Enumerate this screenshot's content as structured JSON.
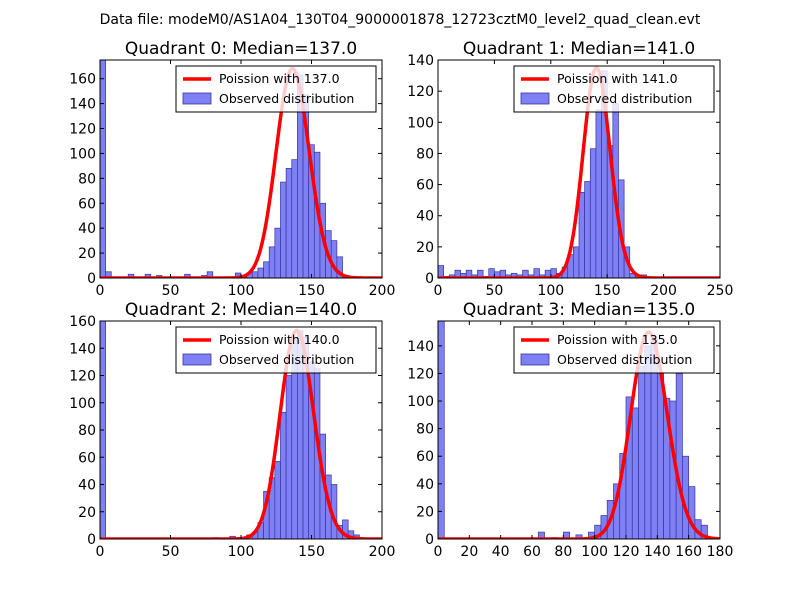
{
  "figure_title": "Data file: modeM0/AS1A04_130T04_9000001878_12723cztM0_level2_quad_clean.evt",
  "colors": {
    "bar_fill": "#8080f5",
    "bar_edge": "#3535a0",
    "line": "#ff0000",
    "axes": "#000000"
  },
  "chart_data": [
    {
      "type": "bar",
      "title": "Quadrant 0: Median=137.0",
      "median": 137.0,
      "xlim": [
        0,
        200
      ],
      "ylim": [
        0,
        175
      ],
      "xticks": [
        0,
        50,
        100,
        150,
        200
      ],
      "yticks": [
        0,
        20,
        40,
        60,
        80,
        100,
        120,
        140,
        160
      ],
      "bin_width": 4,
      "bins": [
        [
          0,
          175
        ],
        [
          4,
          5
        ],
        [
          20,
          3
        ],
        [
          32,
          3
        ],
        [
          40,
          2
        ],
        [
          60,
          3
        ],
        [
          72,
          2
        ],
        [
          76,
          5
        ],
        [
          88,
          1
        ],
        [
          96,
          4
        ],
        [
          100,
          2
        ],
        [
          104,
          4
        ],
        [
          108,
          5
        ],
        [
          112,
          8
        ],
        [
          116,
          13
        ],
        [
          120,
          25
        ],
        [
          124,
          40
        ],
        [
          128,
          77
        ],
        [
          132,
          88
        ],
        [
          136,
          95
        ],
        [
          140,
          163
        ],
        [
          144,
          147
        ],
        [
          148,
          107
        ],
        [
          152,
          101
        ],
        [
          156,
          60
        ],
        [
          160,
          38
        ],
        [
          164,
          30
        ],
        [
          168,
          17
        ],
        [
          172,
          2
        ]
      ],
      "legend": [
        "Poission with 137.0",
        "Observed distribution"
      ],
      "legend_position": "upper-right",
      "fit": {
        "mean": 137.0,
        "peak": 168,
        "label": "Poission with 137.0"
      }
    },
    {
      "type": "bar",
      "title": "Quadrant 1: Median=141.0",
      "median": 141.0,
      "xlim": [
        0,
        250
      ],
      "ylim": [
        0,
        140
      ],
      "xticks": [
        0,
        50,
        100,
        150,
        200,
        250
      ],
      "yticks": [
        0,
        20,
        40,
        60,
        80,
        100,
        120,
        140
      ],
      "bin_width": 5,
      "bins": [
        [
          0,
          8
        ],
        [
          5,
          1
        ],
        [
          10,
          2
        ],
        [
          15,
          5
        ],
        [
          20,
          3
        ],
        [
          25,
          5
        ],
        [
          30,
          2
        ],
        [
          35,
          5
        ],
        [
          40,
          1
        ],
        [
          45,
          6
        ],
        [
          50,
          4
        ],
        [
          55,
          5
        ],
        [
          60,
          2
        ],
        [
          65,
          3
        ],
        [
          70,
          2
        ],
        [
          75,
          5
        ],
        [
          80,
          2
        ],
        [
          85,
          6
        ],
        [
          90,
          2
        ],
        [
          95,
          5
        ],
        [
          100,
          6
        ],
        [
          105,
          3
        ],
        [
          110,
          7
        ],
        [
          115,
          15
        ],
        [
          120,
          20
        ],
        [
          125,
          55
        ],
        [
          130,
          62
        ],
        [
          135,
          83
        ],
        [
          140,
          108
        ],
        [
          145,
          133
        ],
        [
          150,
          85
        ],
        [
          155,
          112
        ],
        [
          160,
          63
        ],
        [
          165,
          20
        ],
        [
          170,
          3
        ],
        [
          175,
          2
        ],
        [
          180,
          2
        ]
      ],
      "legend": [
        "Poission with 141.0",
        "Observed distribution"
      ],
      "legend_position": "upper-right",
      "fit": {
        "mean": 141.0,
        "peak": 135,
        "label": "Poission with 141.0"
      }
    },
    {
      "type": "bar",
      "title": "Quadrant 2: Median=140.0",
      "median": 140.0,
      "xlim": [
        0,
        200
      ],
      "ylim": [
        0,
        160
      ],
      "xticks": [
        0,
        50,
        100,
        150,
        200
      ],
      "yticks": [
        0,
        20,
        40,
        60,
        80,
        100,
        120,
        140,
        160
      ],
      "bin_width": 4,
      "bins": [
        [
          0,
          160
        ],
        [
          80,
          1
        ],
        [
          92,
          2
        ],
        [
          104,
          3
        ],
        [
          108,
          5
        ],
        [
          112,
          12
        ],
        [
          116,
          35
        ],
        [
          120,
          45
        ],
        [
          124,
          57
        ],
        [
          128,
          93
        ],
        [
          132,
          120
        ],
        [
          136,
          148
        ],
        [
          140,
          153
        ],
        [
          144,
          148
        ],
        [
          148,
          130
        ],
        [
          152,
          125
        ],
        [
          156,
          77
        ],
        [
          160,
          47
        ],
        [
          164,
          40
        ],
        [
          168,
          10
        ],
        [
          172,
          14
        ],
        [
          176,
          6
        ],
        [
          180,
          3
        ]
      ],
      "legend": [
        "Poission with 140.0",
        "Observed distribution"
      ],
      "legend_position": "upper-right",
      "fit": {
        "mean": 140.0,
        "peak": 153,
        "label": "Poission with 140.0"
      }
    },
    {
      "type": "bar",
      "title": "Quadrant 3: Median=135.0",
      "median": 135.0,
      "xlim": [
        0,
        180
      ],
      "ylim": [
        0,
        158
      ],
      "xticks": [
        0,
        20,
        40,
        60,
        80,
        100,
        120,
        140,
        160,
        180
      ],
      "xtick_labels": [
        "0",
        "20",
        "40",
        "60",
        "80",
        "100",
        "120",
        "140",
        "160",
        "180"
      ],
      "yticks": [
        0,
        20,
        40,
        60,
        80,
        100,
        120,
        140
      ],
      "bin_width": 4,
      "bins": [
        [
          0,
          158
        ],
        [
          64,
          5
        ],
        [
          72,
          1
        ],
        [
          80,
          5
        ],
        [
          88,
          3
        ],
        [
          96,
          5
        ],
        [
          100,
          10
        ],
        [
          104,
          17
        ],
        [
          108,
          28
        ],
        [
          112,
          40
        ],
        [
          116,
          62
        ],
        [
          120,
          103
        ],
        [
          124,
          95
        ],
        [
          128,
          125
        ],
        [
          132,
          140
        ],
        [
          136,
          145
        ],
        [
          140,
          120
        ],
        [
          144,
          102
        ],
        [
          148,
          100
        ],
        [
          152,
          120
        ],
        [
          156,
          60
        ],
        [
          160,
          38
        ],
        [
          164,
          14
        ],
        [
          168,
          10
        ]
      ],
      "legend": [
        "Poission with 135.0",
        "Observed distribution"
      ],
      "legend_position": "upper-right",
      "fit": {
        "mean": 135.0,
        "peak": 150,
        "label": "Poission with 135.0"
      }
    }
  ]
}
